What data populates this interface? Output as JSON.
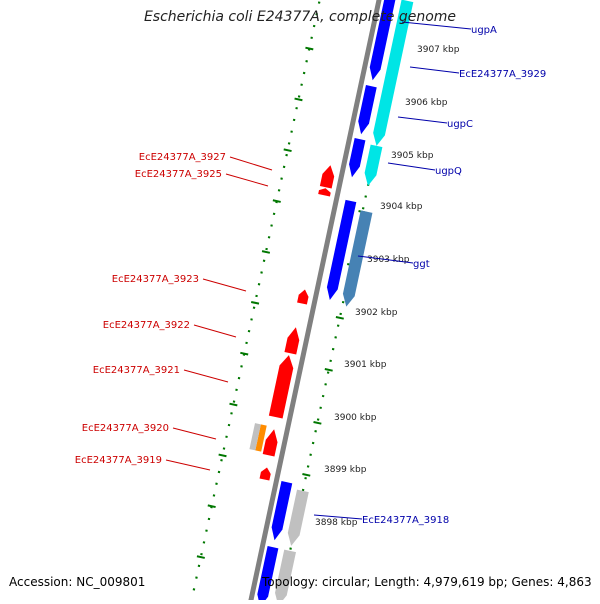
{
  "title": "Escherichia coli E24377A, complete genome",
  "accession": "Accession: NC_009801",
  "topology": "Topology: circular; Length: 4,979,619 bp; Genes: 4,863",
  "colors": {
    "forward": "#0000ff",
    "forward_alt": "#4682b4",
    "forward_cyan": "#00e5e5",
    "reverse": "#ff0000",
    "neutral": "#c0c0c0",
    "orange": "#ff8c00",
    "axis": "#808080",
    "ruler_green": "#007700",
    "label_blue": "#0000aa",
    "label_red": "#cc0000"
  },
  "kbp_ticks": [
    {
      "label": "3907 kbp"
    },
    {
      "label": "3906 kbp"
    },
    {
      "label": "3905 kbp"
    },
    {
      "label": "3904 kbp"
    },
    {
      "label": "3903 kbp"
    },
    {
      "label": "3902 kbp"
    },
    {
      "label": "3901 kbp"
    },
    {
      "label": "3900 kbp"
    },
    {
      "label": "3899 kbp"
    },
    {
      "label": "3898 kbp"
    }
  ],
  "forward_labels": [
    {
      "name": "ugpA"
    },
    {
      "name": "EcE24377A_3929"
    },
    {
      "name": "ugpC"
    },
    {
      "name": "ugpQ"
    },
    {
      "name": "ggt"
    },
    {
      "name": "EcE24377A_3918"
    }
  ],
  "reverse_labels": [
    {
      "name": "EcE24377A_3927"
    },
    {
      "name": "EcE24377A_3925"
    },
    {
      "name": "EcE24377A_3923"
    },
    {
      "name": "EcE24377A_3922"
    },
    {
      "name": "EcE24377A_3921"
    },
    {
      "name": "EcE24377A_3920"
    },
    {
      "name": "EcE24377A_3919"
    }
  ]
}
